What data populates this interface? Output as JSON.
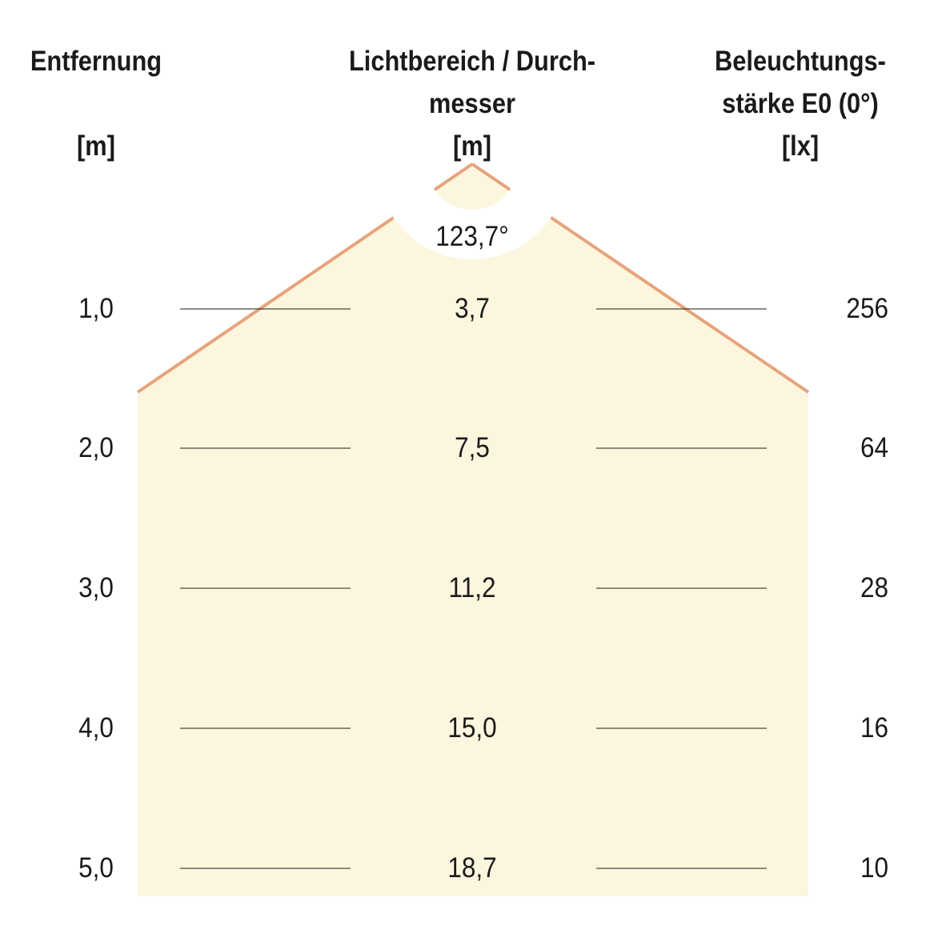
{
  "headers": {
    "distance": [
      "Entfernung",
      "",
      "[m]"
    ],
    "diameter": [
      "Lichtbereich / Durch-",
      "messer",
      "[m]"
    ],
    "illuminance": [
      "Beleuchtungs-",
      "stärke E0 (0°)",
      "[lx]"
    ]
  },
  "beam_angle": "123,7°",
  "rows": [
    {
      "distance": "1,0",
      "diameter": "3,7",
      "lux": "256"
    },
    {
      "distance": "2,0",
      "diameter": "7,5",
      "lux": "64"
    },
    {
      "distance": "3,0",
      "diameter": "11,2",
      "lux": "28"
    },
    {
      "distance": "4,0",
      "diameter": "15,0",
      "lux": "16"
    },
    {
      "distance": "5,0",
      "diameter": "18,7",
      "lux": "10"
    }
  ],
  "colors": {
    "fill": "#fdf6de",
    "beam_edge": "#e6a47c",
    "line": "#1a1a1a"
  }
}
